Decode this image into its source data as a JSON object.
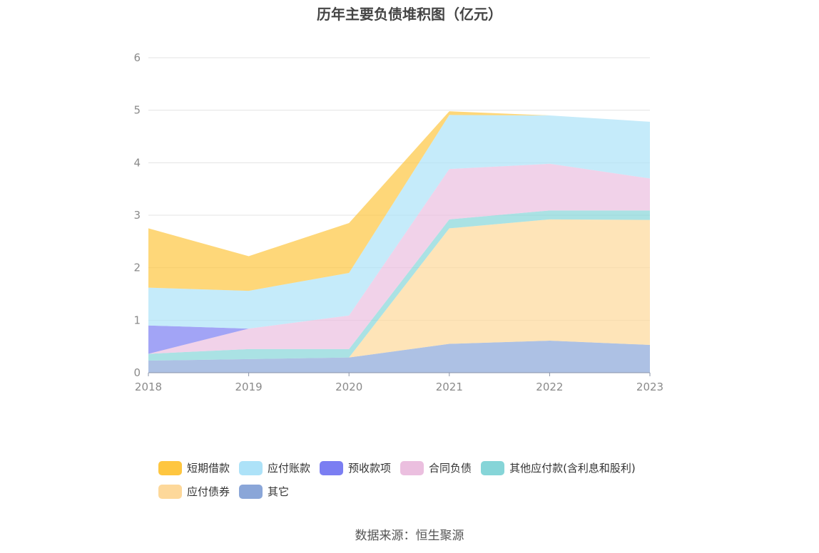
{
  "chart_data": {
    "type": "area",
    "stacked": true,
    "title": "历年主要负债堆积图（亿元）",
    "xlabel": "",
    "ylabel": "",
    "x": [
      "2018",
      "2019",
      "2020",
      "2021",
      "2022",
      "2023"
    ],
    "ylim": [
      0,
      6
    ],
    "yticks": [
      0,
      1,
      2,
      3,
      4,
      5,
      6
    ],
    "grid": true,
    "legend_position": "bottom",
    "series": [
      {
        "name": "其它",
        "color": "#8aa6d8",
        "values": [
          0.23,
          0.26,
          0.29,
          0.55,
          0.61,
          0.53
        ]
      },
      {
        "name": "应付债券",
        "color": "#fdd89a",
        "values": [
          0.0,
          0.0,
          0.0,
          2.2,
          2.31,
          2.38
        ]
      },
      {
        "name": "其他应付款(含利息和股利)",
        "color": "#86d5d8",
        "values": [
          0.13,
          0.19,
          0.16,
          0.17,
          0.17,
          0.18
        ]
      },
      {
        "name": "合同负债",
        "color": "#ebbfdf",
        "values": [
          0.0,
          0.39,
          0.64,
          0.96,
          0.89,
          0.61
        ]
      },
      {
        "name": "预收款项",
        "color": "#7b7ef2",
        "values": [
          0.54,
          0.0,
          0.0,
          0.0,
          0.0,
          0.0
        ]
      },
      {
        "name": "应付账款",
        "color": "#ade2f8",
        "values": [
          0.72,
          0.72,
          0.81,
          1.03,
          0.92,
          1.08
        ]
      },
      {
        "name": "短期借款",
        "color": "#fec640",
        "values": [
          1.13,
          0.66,
          0.95,
          0.07,
          0.0,
          0.0
        ]
      }
    ],
    "legend": [
      {
        "name": "短期借款",
        "color": "#fec640"
      },
      {
        "name": "应付账款",
        "color": "#ade2f8"
      },
      {
        "name": "预收款项",
        "color": "#7b7ef2"
      },
      {
        "name": "合同负债",
        "color": "#ebbfdf"
      },
      {
        "name": "其他应付款(含利息和股利)",
        "color": "#86d5d8"
      },
      {
        "name": "应付债券",
        "color": "#fdd89a"
      },
      {
        "name": "其它",
        "color": "#8aa6d8"
      }
    ],
    "source": "数据来源：恒生聚源"
  }
}
